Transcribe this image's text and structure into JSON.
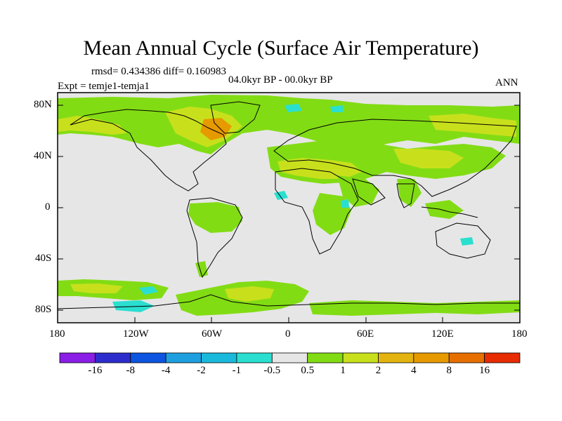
{
  "title": "Mean Annual Cycle (Surface Air Temperature)",
  "stats": "rmsd= 0.434386 diff= 0.160983",
  "period": "04.0kyr BP - 00.0kyr BP",
  "experiment": "Expt = temje1-temja1",
  "season": "ANN",
  "axes": {
    "lat_labels": [
      "80N",
      "40N",
      "0",
      "40S",
      "80S"
    ],
    "lon_labels": [
      "180",
      "120W",
      "60W",
      "0",
      "60E",
      "120E",
      "180"
    ]
  },
  "colorbar": {
    "colors": [
      "#8a1ee6",
      "#2d2dcd",
      "#0d55e0",
      "#1e9fe0",
      "#1ab9dc",
      "#2adfcf",
      "#e6e6e6",
      "#82dc14",
      "#c8e01c",
      "#e3b410",
      "#e69a00",
      "#e66f00",
      "#e62c00"
    ],
    "labels": [
      "-16",
      "-8",
      "-4",
      "-2",
      "-1",
      "-0.5",
      "0.5",
      "1",
      "2",
      "4",
      "8",
      "16"
    ]
  },
  "legend_colors": {
    "neutral": "#e6e6e6",
    "green": "#82dc14",
    "yellow": "#c8e01c",
    "orange": "#e3b410",
    "dark_orange": "#e69a00",
    "cyan": "#2adfcf"
  }
}
